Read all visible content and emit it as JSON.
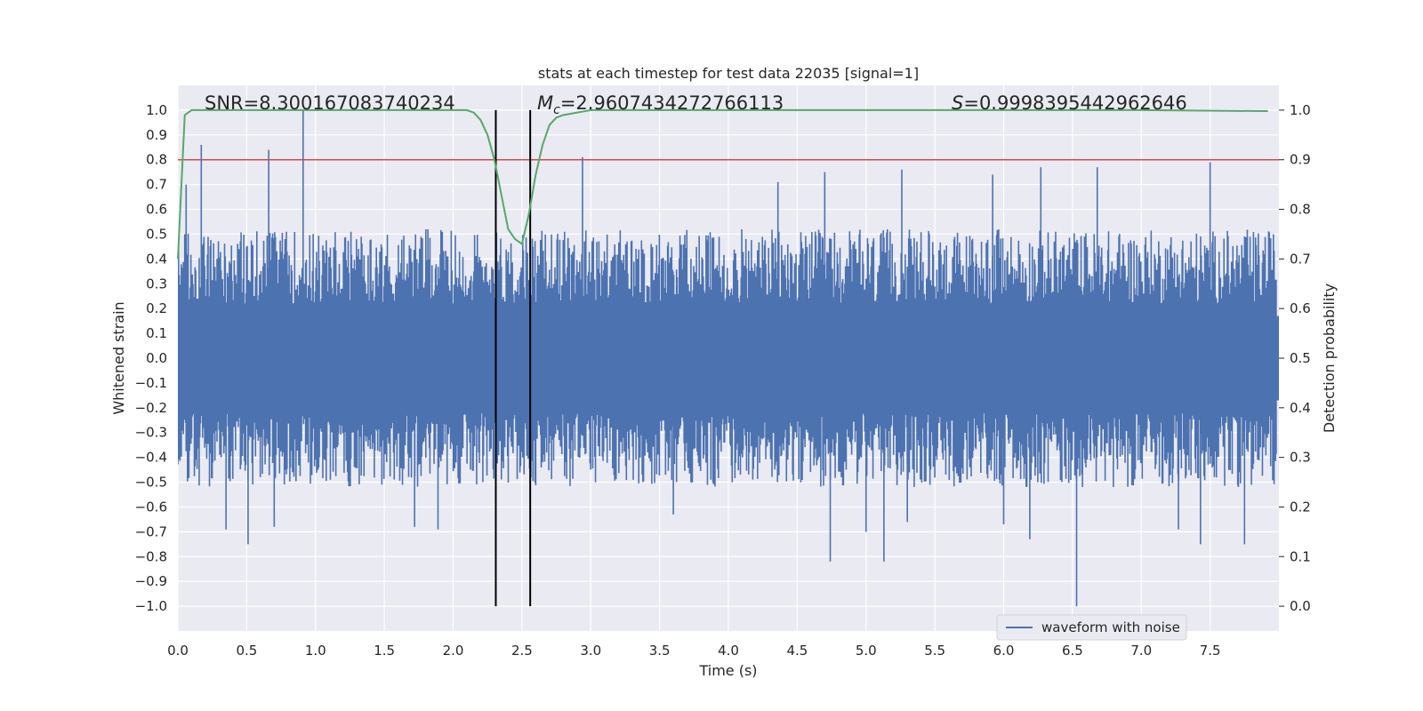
{
  "chart_data": {
    "type": "line",
    "title": "stats at each timestep for test data 22035 [signal=1]",
    "xlabel": "Time (s)",
    "ylabel": "Whitened strain",
    "y2label": "Detection probability",
    "xlim": [
      0.0,
      8.0
    ],
    "ylim": [
      -1.1,
      1.1
    ],
    "y2lim": [
      -0.05,
      1.05
    ],
    "x_ticks": [
      0.0,
      0.5,
      1.0,
      1.5,
      2.0,
      2.5,
      3.0,
      3.5,
      4.0,
      4.5,
      5.0,
      5.5,
      6.0,
      6.5,
      7.0,
      7.5
    ],
    "x_tick_labels": [
      "0.0",
      "0.5",
      "1.0",
      "1.5",
      "2.0",
      "2.5",
      "3.0",
      "3.5",
      "4.0",
      "4.5",
      "5.0",
      "5.5",
      "6.0",
      "6.5",
      "7.0",
      "7.5"
    ],
    "y_ticks": [
      -1.0,
      -0.9,
      -0.8,
      -0.7,
      -0.6,
      -0.5,
      -0.4,
      -0.3,
      -0.2,
      -0.1,
      0.0,
      0.1,
      0.2,
      0.3,
      0.4,
      0.5,
      0.6,
      0.7,
      0.8,
      0.9,
      1.0
    ],
    "y_tick_labels": [
      "−1.0",
      "−0.9",
      "−0.8",
      "−0.7",
      "−0.6",
      "−0.5",
      "−0.4",
      "−0.3",
      "−0.2",
      "−0.1",
      "0.0",
      "0.1",
      "0.2",
      "0.3",
      "0.4",
      "0.5",
      "0.6",
      "0.7",
      "0.8",
      "0.9",
      "1.0"
    ],
    "y2_ticks": [
      0.0,
      0.1,
      0.2,
      0.3,
      0.4,
      0.5,
      0.6,
      0.7,
      0.8,
      0.9,
      1.0
    ],
    "y2_tick_labels": [
      "0.0",
      "0.1",
      "0.2",
      "0.3",
      "0.4",
      "0.5",
      "0.6",
      "0.7",
      "0.8",
      "0.9",
      "1.0"
    ],
    "grid": true,
    "legend_position": "lower-right",
    "annotations": {
      "snr": "SNR=8.300167083740234",
      "mc_symbol": "M",
      "mc_sub": "c",
      "mc_value": "=2.9607434272766113",
      "s_symbol": "S",
      "s_value": "=0.9998395442962646"
    },
    "series": [
      {
        "name": "waveform with noise",
        "axis": "left",
        "color": "#4c72b0",
        "kind": "dense_noise",
        "sample_count": 1600,
        "envelope_upper": 0.4,
        "envelope_lower": -0.4,
        "peaks": [
          {
            "x": 0.06,
            "y": 0.7
          },
          {
            "x": 0.17,
            "y": 0.86
          },
          {
            "x": 0.66,
            "y": 0.84
          },
          {
            "x": 0.91,
            "y": 1.0
          },
          {
            "x": 2.94,
            "y": 0.81
          },
          {
            "x": 7.5,
            "y": 0.79
          },
          {
            "x": 5.26,
            "y": 0.76
          },
          {
            "x": 6.27,
            "y": 0.77
          },
          {
            "x": 6.68,
            "y": 0.77
          },
          {
            "x": 4.7,
            "y": 0.75
          },
          {
            "x": 5.92,
            "y": 0.74
          },
          {
            "x": 4.36,
            "y": 0.71
          },
          {
            "x": 0.51,
            "y": -0.75
          },
          {
            "x": 0.35,
            "y": -0.69
          },
          {
            "x": 0.7,
            "y": -0.68
          },
          {
            "x": 1.72,
            "y": -0.68
          },
          {
            "x": 1.89,
            "y": -0.69
          },
          {
            "x": 4.74,
            "y": -0.82
          },
          {
            "x": 5.13,
            "y": -0.82
          },
          {
            "x": 6.53,
            "y": -1.0
          },
          {
            "x": 6.19,
            "y": -0.73
          },
          {
            "x": 7.43,
            "y": -0.75
          },
          {
            "x": 7.75,
            "y": -0.75
          },
          {
            "x": 5.0,
            "y": -0.7
          },
          {
            "x": 6.0,
            "y": -0.67
          },
          {
            "x": 3.6,
            "y": -0.63
          },
          {
            "x": 5.3,
            "y": -0.66
          },
          {
            "x": 7.27,
            "y": -0.69
          }
        ]
      },
      {
        "name": "",
        "axis": "right",
        "color": "#55a868",
        "x": [
          0.0,
          0.05,
          0.1,
          0.15,
          0.2,
          0.3,
          1.0,
          1.5,
          2.0,
          2.1,
          2.15,
          2.2,
          2.25,
          2.3,
          2.35,
          2.4,
          2.45,
          2.5,
          2.55,
          2.6,
          2.65,
          2.7,
          2.75,
          2.8,
          2.9,
          3.0,
          4.0,
          5.0,
          6.0,
          7.0,
          7.92
        ],
        "y": [
          0.7,
          0.99,
          1.0,
          1.0,
          1.0,
          1.0,
          1.0,
          1.0,
          1.0,
          1.0,
          0.995,
          0.98,
          0.95,
          0.9,
          0.83,
          0.76,
          0.74,
          0.73,
          0.79,
          0.87,
          0.93,
          0.97,
          0.985,
          0.99,
          0.995,
          1.0,
          1.0,
          1.0,
          1.0,
          1.0,
          0.998
        ]
      }
    ],
    "threshold": {
      "axis": "right",
      "y": 0.9,
      "color": "#c44e52"
    },
    "vlines": [
      {
        "x": 2.31,
        "ymin": -1.0,
        "ymax": 1.0,
        "color": "#000000"
      },
      {
        "x": 2.56,
        "ymin": -1.0,
        "ymax": 1.0,
        "color": "#000000"
      }
    ],
    "colors": {
      "background": "#eaeaf2",
      "grid": "#ffffff"
    }
  }
}
